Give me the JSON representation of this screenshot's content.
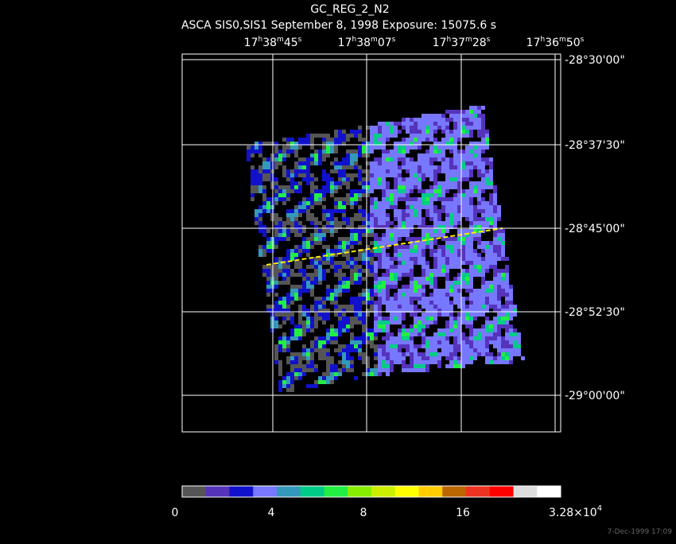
{
  "header": {
    "title": "GC_REG_2_N2",
    "subtitle": "ASCA SIS0,SIS1 September 8, 1998 Exposure: 15075.6 s"
  },
  "ra_labels": [
    [
      "17",
      "h",
      "38",
      "m",
      "45",
      "s"
    ],
    [
      "17",
      "h",
      "38",
      "m",
      "07",
      "s"
    ],
    [
      "17",
      "h",
      "37",
      "m",
      "28",
      "s"
    ],
    [
      "17",
      "h",
      "36",
      "m",
      "50",
      "s"
    ]
  ],
  "dec_labels": [
    "-28°30'00\"",
    "-28°37'30\"",
    "-28°45'00\"",
    "-28°52'30\"",
    "-29°00'00\""
  ],
  "colorbar": {
    "colors": [
      "#555555",
      "#5533bb",
      "#1111cc",
      "#7777ff",
      "#3399bb",
      "#00cc88",
      "#22ee44",
      "#88ee00",
      "#ccee00",
      "#ffff00",
      "#ffcc00",
      "#bb6600",
      "#ee3322",
      "#ff0000",
      "#dddddd",
      "#ffffff"
    ],
    "labels": [
      "0",
      "4",
      "8",
      "16"
    ],
    "max_label": [
      "3.28×10",
      "4"
    ]
  },
  "timestamp": "7-Dec-1999 17:09"
}
